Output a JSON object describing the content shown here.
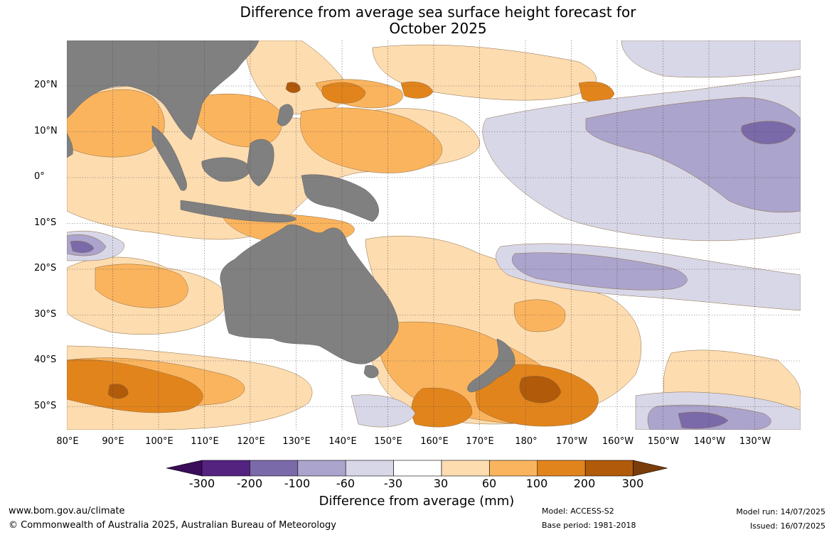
{
  "title": {
    "line1": "Difference from average sea surface height forecast for",
    "line2": "October 2025"
  },
  "lat_labels": [
    "20°N",
    "10°N",
    "0°",
    "10°S",
    "20°S",
    "30°S",
    "40°S",
    "50°S"
  ],
  "lon_labels": [
    "80°E",
    "90°E",
    "100°E",
    "110°E",
    "120°E",
    "130°E",
    "140°E",
    "150°E",
    "160°E",
    "170°E",
    "180°",
    "170°W",
    "160°W",
    "150°W",
    "140°W",
    "130°W"
  ],
  "colorbar": {
    "labels": [
      "-300",
      "-200",
      "-100",
      "-60",
      "-30",
      "30",
      "60",
      "100",
      "200",
      "300"
    ],
    "colors": [
      "#3a0c5a",
      "#54227f",
      "#7b6aa9",
      "#aba4cc",
      "#d8d7e8",
      "#ffffff",
      "#fddcb0",
      "#fbb45e",
      "#e2841c",
      "#b05a0a",
      "#7a3c08"
    ],
    "title": "Difference from average (mm)"
  },
  "land_color": "#808080",
  "footer": {
    "url": "www.bom.gov.au/climate",
    "copyright": "© Commonwealth of Australia 2025, Australian Bureau of Meteorology",
    "model": "Model: ACCESS-S2",
    "base_period": "Base period: 1981-2018",
    "model_run": "Model run: 14/07/2025",
    "issued": "Issued: 16/07/2025"
  }
}
